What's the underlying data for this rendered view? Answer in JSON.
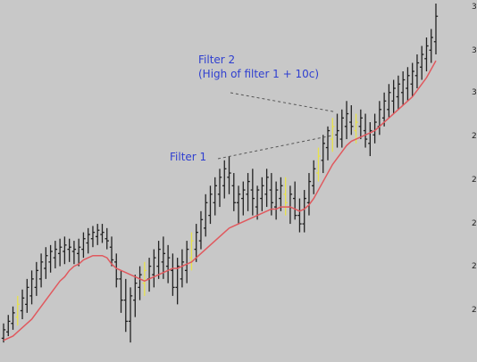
{
  "chart_data": {
    "type": "ohlc",
    "title": "",
    "xlabel": "",
    "ylabel": "",
    "ylim": [
      1.95,
      3.6
    ],
    "y_ticks": [
      "3",
      "3",
      "3",
      "2",
      "2",
      "2",
      "2",
      "2"
    ],
    "grid": false,
    "colors": {
      "background": "#c8c8c8",
      "bars": "#222222",
      "highlight_bars": "#e8e24a",
      "moving_average": "#e0595e",
      "annotation": "#2f3fd0",
      "leader": "#555555"
    },
    "bars": [
      [
        2.02,
        2.09,
        2.0,
        2.06
      ],
      [
        2.05,
        2.13,
        2.03,
        2.1
      ],
      [
        2.09,
        2.17,
        2.06,
        2.14
      ],
      [
        2.12,
        2.22,
        2.08,
        2.18
      ],
      [
        2.15,
        2.25,
        2.11,
        2.21
      ],
      [
        2.18,
        2.3,
        2.14,
        2.26
      ],
      [
        2.22,
        2.34,
        2.18,
        2.3
      ],
      [
        2.26,
        2.38,
        2.22,
        2.34
      ],
      [
        2.3,
        2.42,
        2.26,
        2.38
      ],
      [
        2.35,
        2.45,
        2.3,
        2.41
      ],
      [
        2.38,
        2.46,
        2.33,
        2.43
      ],
      [
        2.4,
        2.48,
        2.35,
        2.44
      ],
      [
        2.42,
        2.49,
        2.36,
        2.45
      ],
      [
        2.43,
        2.5,
        2.37,
        2.46
      ],
      [
        2.44,
        2.49,
        2.38,
        2.45
      ],
      [
        2.43,
        2.48,
        2.37,
        2.44
      ],
      [
        2.42,
        2.49,
        2.36,
        2.45
      ],
      [
        2.44,
        2.52,
        2.4,
        2.49
      ],
      [
        2.47,
        2.54,
        2.42,
        2.51
      ],
      [
        2.49,
        2.55,
        2.45,
        2.52
      ],
      [
        2.5,
        2.56,
        2.46,
        2.53
      ],
      [
        2.51,
        2.56,
        2.47,
        2.52
      ],
      [
        2.49,
        2.54,
        2.44,
        2.48
      ],
      [
        2.45,
        2.5,
        2.36,
        2.39
      ],
      [
        2.38,
        2.42,
        2.26,
        2.3
      ],
      [
        2.3,
        2.34,
        2.14,
        2.2
      ],
      [
        2.2,
        2.3,
        2.05,
        2.1
      ],
      [
        2.1,
        2.26,
        2.0,
        2.22
      ],
      [
        2.2,
        2.32,
        2.12,
        2.28
      ],
      [
        2.26,
        2.36,
        2.2,
        2.32
      ],
      [
        2.28,
        2.38,
        2.22,
        2.34
      ],
      [
        2.3,
        2.4,
        2.24,
        2.36
      ],
      [
        2.32,
        2.44,
        2.26,
        2.4
      ],
      [
        2.36,
        2.48,
        2.3,
        2.44
      ],
      [
        2.38,
        2.5,
        2.3,
        2.42
      ],
      [
        2.36,
        2.46,
        2.28,
        2.4
      ],
      [
        2.34,
        2.42,
        2.22,
        2.26
      ],
      [
        2.26,
        2.4,
        2.18,
        2.36
      ],
      [
        2.3,
        2.44,
        2.26,
        2.38
      ],
      [
        2.34,
        2.48,
        2.28,
        2.44
      ],
      [
        2.4,
        2.52,
        2.34,
        2.48
      ],
      [
        2.44,
        2.56,
        2.38,
        2.52
      ],
      [
        2.48,
        2.62,
        2.44,
        2.58
      ],
      [
        2.54,
        2.7,
        2.5,
        2.66
      ],
      [
        2.6,
        2.74,
        2.56,
        2.7
      ],
      [
        2.66,
        2.78,
        2.6,
        2.74
      ],
      [
        2.7,
        2.82,
        2.64,
        2.78
      ],
      [
        2.74,
        2.86,
        2.68,
        2.82
      ],
      [
        2.78,
        2.88,
        2.7,
        2.8
      ],
      [
        2.74,
        2.8,
        2.62,
        2.66
      ],
      [
        2.66,
        2.74,
        2.56,
        2.7
      ],
      [
        2.68,
        2.76,
        2.6,
        2.72
      ],
      [
        2.7,
        2.8,
        2.62,
        2.76
      ],
      [
        2.72,
        2.82,
        2.6,
        2.68
      ],
      [
        2.64,
        2.74,
        2.58,
        2.72
      ],
      [
        2.68,
        2.78,
        2.62,
        2.74
      ],
      [
        2.7,
        2.82,
        2.64,
        2.78
      ],
      [
        2.72,
        2.8,
        2.6,
        2.66
      ],
      [
        2.64,
        2.76,
        2.58,
        2.72
      ],
      [
        2.68,
        2.78,
        2.62,
        2.74
      ],
      [
        2.7,
        2.78,
        2.6,
        2.66
      ],
      [
        2.64,
        2.74,
        2.56,
        2.7
      ],
      [
        2.68,
        2.76,
        2.58,
        2.6
      ],
      [
        2.6,
        2.68,
        2.52,
        2.56
      ],
      [
        2.56,
        2.72,
        2.52,
        2.68
      ],
      [
        2.66,
        2.8,
        2.6,
        2.76
      ],
      [
        2.74,
        2.86,
        2.7,
        2.82
      ],
      [
        2.8,
        2.92,
        2.76,
        2.88
      ],
      [
        2.86,
        2.98,
        2.8,
        2.94
      ],
      [
        2.92,
        3.02,
        2.86,
        3.0
      ],
      [
        2.96,
        3.06,
        2.9,
        3.02
      ],
      [
        2.98,
        3.08,
        2.92,
        3.0
      ],
      [
        2.96,
        3.1,
        2.92,
        3.06
      ],
      [
        3.02,
        3.14,
        2.96,
        3.08
      ],
      [
        3.04,
        3.12,
        2.98,
        3.02
      ],
      [
        3.0,
        3.08,
        2.94,
        3.04
      ],
      [
        3.02,
        3.1,
        2.96,
        3.06
      ],
      [
        3.0,
        3.08,
        2.92,
        2.96
      ],
      [
        2.94,
        3.04,
        2.88,
        3.0
      ],
      [
        2.98,
        3.08,
        2.94,
        3.04
      ],
      [
        3.02,
        3.14,
        2.98,
        3.1
      ],
      [
        3.06,
        3.18,
        3.02,
        3.14
      ],
      [
        3.1,
        3.22,
        3.06,
        3.18
      ],
      [
        3.14,
        3.24,
        3.08,
        3.2
      ],
      [
        3.16,
        3.26,
        3.1,
        3.22
      ],
      [
        3.18,
        3.28,
        3.12,
        3.24
      ],
      [
        3.2,
        3.3,
        3.14,
        3.26
      ],
      [
        3.22,
        3.32,
        3.16,
        3.28
      ],
      [
        3.26,
        3.36,
        3.2,
        3.32
      ],
      [
        3.3,
        3.4,
        3.24,
        3.36
      ],
      [
        3.34,
        3.44,
        3.28,
        3.4
      ],
      [
        3.38,
        3.48,
        3.32,
        3.44
      ],
      [
        3.42,
        3.6,
        3.36,
        3.54
      ]
    ],
    "highlighted": [
      3,
      30,
      40,
      60,
      67,
      70,
      75
    ],
    "moving_average": [
      2.01,
      2.02,
      2.03,
      2.05,
      2.07,
      2.09,
      2.11,
      2.14,
      2.17,
      2.2,
      2.23,
      2.26,
      2.29,
      2.31,
      2.34,
      2.36,
      2.37,
      2.39,
      2.4,
      2.41,
      2.41,
      2.41,
      2.4,
      2.37,
      2.35,
      2.34,
      2.33,
      2.32,
      2.31,
      2.3,
      2.29,
      2.3,
      2.31,
      2.32,
      2.33,
      2.34,
      2.35,
      2.35,
      2.36,
      2.37,
      2.38,
      2.4,
      2.42,
      2.44,
      2.46,
      2.48,
      2.5,
      2.52,
      2.54,
      2.55,
      2.56,
      2.57,
      2.58,
      2.59,
      2.6,
      2.61,
      2.62,
      2.63,
      2.63,
      2.64,
      2.64,
      2.64,
      2.63,
      2.62,
      2.63,
      2.65,
      2.68,
      2.72,
      2.76,
      2.8,
      2.84,
      2.87,
      2.9,
      2.93,
      2.95,
      2.96,
      2.97,
      2.98,
      2.99,
      3.0,
      3.02,
      3.04,
      3.06,
      3.08,
      3.1,
      3.12,
      3.14,
      3.16,
      3.19,
      3.22,
      3.25,
      3.29,
      3.33
    ],
    "annotations": [
      {
        "lines": [
          "Filter 2",
          "(High of filter 1 + 10c)"
        ],
        "points_to_bar": 71
      },
      {
        "lines": [
          "Filter 1"
        ],
        "points_to_bar": 70
      }
    ]
  }
}
